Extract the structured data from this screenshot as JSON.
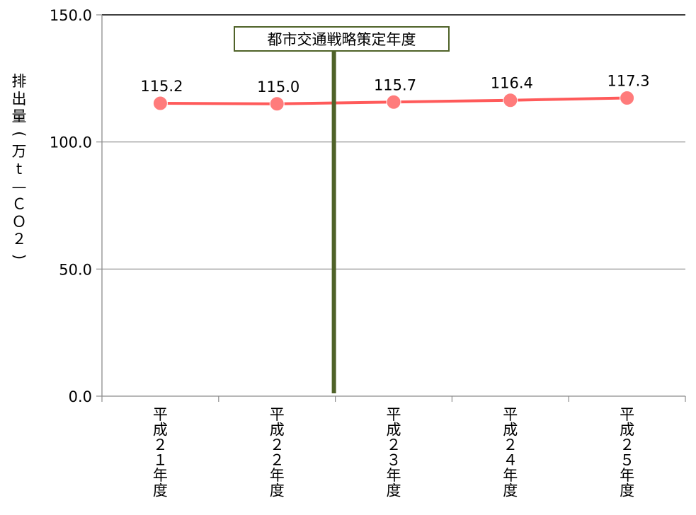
{
  "chart_data": {
    "type": "line",
    "categories": [
      [
        "平",
        "成",
        "２",
        "１",
        "年",
        "度"
      ],
      [
        "平",
        "成",
        "２",
        "２",
        "年",
        "度"
      ],
      [
        "平",
        "成",
        "２",
        "３",
        "年",
        "度"
      ],
      [
        "平",
        "成",
        "２",
        "４",
        "年",
        "度"
      ],
      [
        "平",
        "成",
        "２",
        "５",
        "年",
        "度"
      ]
    ],
    "series": [
      {
        "values": [
          115.2,
          115.0,
          115.7,
          116.4,
          117.3
        ],
        "color": "#ff5a5a",
        "marker_color": "#ff7b7b"
      }
    ],
    "data_labels": [
      "115.2",
      "115.0",
      "115.7",
      "116.4",
      "117.3"
    ],
    "ylabel_chars": [
      "排",
      "出",
      "量",
      "(",
      "万",
      "t",
      "—",
      "Ｃ",
      "Ｏ",
      "２",
      ")"
    ],
    "yticks": [
      "0.0",
      "50.0",
      "100.0",
      "150.0"
    ],
    "ylim": [
      0,
      150
    ],
    "grid": true,
    "annotation": {
      "label": "都市交通戦略策定年度",
      "between_categories": [
        1,
        2
      ],
      "color": "#4f6228"
    }
  }
}
